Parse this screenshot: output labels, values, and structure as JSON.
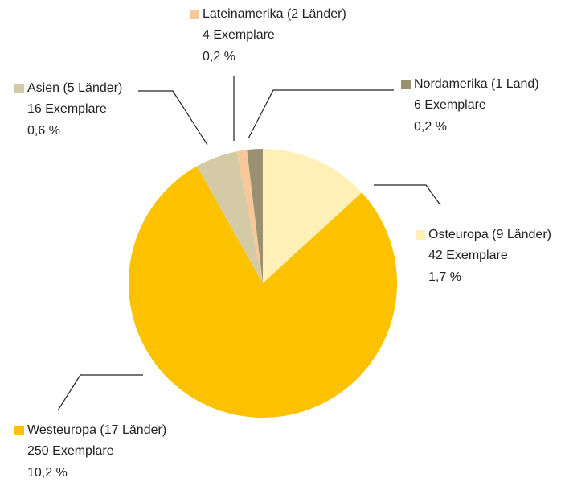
{
  "chart_data": {
    "type": "pie",
    "categories": [
      "Osteuropa (9 Länder)",
      "Westeuropa (17 Länder)",
      "Asien (5 Länder)",
      "Lateinamerika (2 Länder)",
      "Nordamerika (1 Land)"
    ],
    "values": [
      42,
      250,
      16,
      4,
      6
    ],
    "value_labels": [
      "42 Exemplare",
      "250 Exemplare",
      "16 Exemplare",
      "4 Exemplare",
      "6 Exemplare"
    ],
    "percentages": [
      1.7,
      10.2,
      0.6,
      0.2,
      0.2
    ],
    "percentage_labels": [
      "1,7 %",
      "10,2 %",
      "0,6 %",
      "0,2 %",
      "0,2 %"
    ],
    "colors": [
      "#fff0b8",
      "#fcc200",
      "#d4cba6",
      "#f7c89b",
      "#999170"
    ]
  }
}
